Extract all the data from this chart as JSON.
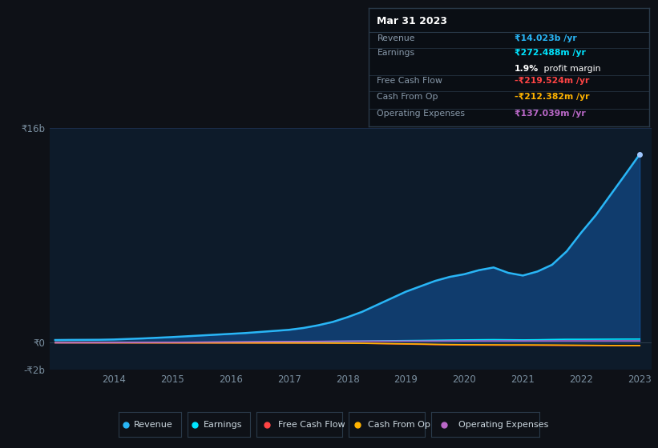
{
  "bg_color": "#0e1117",
  "plot_bg_color": "#0d1b2a",
  "grid_color": "#1e3050",
  "years": [
    2013.0,
    2013.25,
    2013.5,
    2013.75,
    2014.0,
    2014.25,
    2014.5,
    2014.75,
    2015.0,
    2015.25,
    2015.5,
    2015.75,
    2016.0,
    2016.25,
    2016.5,
    2016.75,
    2017.0,
    2017.25,
    2017.5,
    2017.75,
    2018.0,
    2018.25,
    2018.5,
    2018.75,
    2019.0,
    2019.25,
    2019.5,
    2019.75,
    2020.0,
    2020.25,
    2020.5,
    2020.75,
    2021.0,
    2021.25,
    2021.5,
    2021.75,
    2022.0,
    2022.25,
    2022.5,
    2022.75,
    2023.0
  ],
  "revenue": [
    200,
    210,
    215,
    220,
    240,
    280,
    320,
    370,
    420,
    480,
    540,
    600,
    660,
    720,
    800,
    880,
    960,
    1100,
    1300,
    1550,
    1900,
    2300,
    2800,
    3300,
    3800,
    4200,
    4600,
    4900,
    5100,
    5400,
    5600,
    5200,
    5000,
    5300,
    5800,
    6800,
    8200,
    9500,
    11000,
    12500,
    14023
  ],
  "earnings": [
    10,
    12,
    14,
    16,
    18,
    20,
    22,
    25,
    28,
    32,
    36,
    40,
    44,
    50,
    58,
    65,
    72,
    80,
    90,
    100,
    110,
    120,
    135,
    150,
    160,
    170,
    185,
    200,
    210,
    220,
    230,
    220,
    210,
    220,
    240,
    255,
    255,
    260,
    265,
    270,
    272
  ],
  "free_cash_flow": [
    0,
    -2,
    -3,
    -4,
    -5,
    -6,
    -7,
    -8,
    -9,
    -10,
    -11,
    -12,
    -12,
    -13,
    -14,
    -15,
    -16,
    -18,
    -20,
    -25,
    -30,
    -45,
    -60,
    -80,
    -100,
    -120,
    -140,
    -160,
    -170,
    -175,
    -180,
    -185,
    -185,
    -190,
    -195,
    -200,
    -205,
    -210,
    -215,
    -218,
    -220
  ],
  "cash_from_op": [
    2,
    0,
    -2,
    -3,
    -4,
    -5,
    -6,
    -7,
    -8,
    -9,
    -10,
    -11,
    -12,
    -13,
    -14,
    -15,
    -16,
    -18,
    -20,
    -25,
    -30,
    -40,
    -55,
    -70,
    -85,
    -100,
    -120,
    -135,
    -145,
    -150,
    -155,
    -160,
    -160,
    -165,
    -170,
    -178,
    -185,
    -195,
    -205,
    -210,
    -212
  ],
  "operating_expenses": [
    2,
    4,
    6,
    8,
    10,
    15,
    20,
    25,
    30,
    38,
    45,
    52,
    58,
    65,
    72,
    78,
    85,
    92,
    100,
    108,
    115,
    118,
    120,
    122,
    124,
    126,
    128,
    130,
    130,
    131,
    132,
    133,
    133,
    134,
    135,
    136,
    136,
    136,
    137,
    137,
    137
  ],
  "revenue_color": "#29b6f6",
  "earnings_color": "#00e5ff",
  "free_cash_flow_color": "#ff4444",
  "cash_from_op_color": "#ffb300",
  "operating_expenses_color": "#ba68c8",
  "fill_color": "#1565c0",
  "fill_alpha": 0.45,
  "tooltip_bg": "#0a0e14",
  "tooltip_border": "#2a3a4a",
  "ylim_min": -2000,
  "ylim_max": 16000,
  "yticks": [
    -2000,
    0,
    16000
  ],
  "ytick_labels": [
    "-₹2b",
    "₹0",
    "₹16b"
  ],
  "xtick_years": [
    2014,
    2015,
    2016,
    2017,
    2018,
    2019,
    2020,
    2021,
    2022,
    2023
  ],
  "tooltip_title": "Mar 31 2023",
  "tooltip_revenue_label": "Revenue",
  "tooltip_revenue_val": "₹14.023b",
  "tooltip_earnings_label": "Earnings",
  "tooltip_earnings_val": "₹272.488m",
  "tooltip_margin_val": "1.9%",
  "tooltip_margin_text": " profit margin",
  "tooltip_fcf_label": "Free Cash Flow",
  "tooltip_fcf_val": "-₹219.524m",
  "tooltip_cashop_label": "Cash From Op",
  "tooltip_cashop_val": "-₹212.382m",
  "tooltip_opex_label": "Operating Expenses",
  "tooltip_opex_val": "₹137.039m",
  "legend_labels": [
    "Revenue",
    "Earnings",
    "Free Cash Flow",
    "Cash From Op",
    "Operating Expenses"
  ],
  "legend_colors": [
    "#29b6f6",
    "#00e5ff",
    "#ff4444",
    "#ffb300",
    "#ba68c8"
  ]
}
